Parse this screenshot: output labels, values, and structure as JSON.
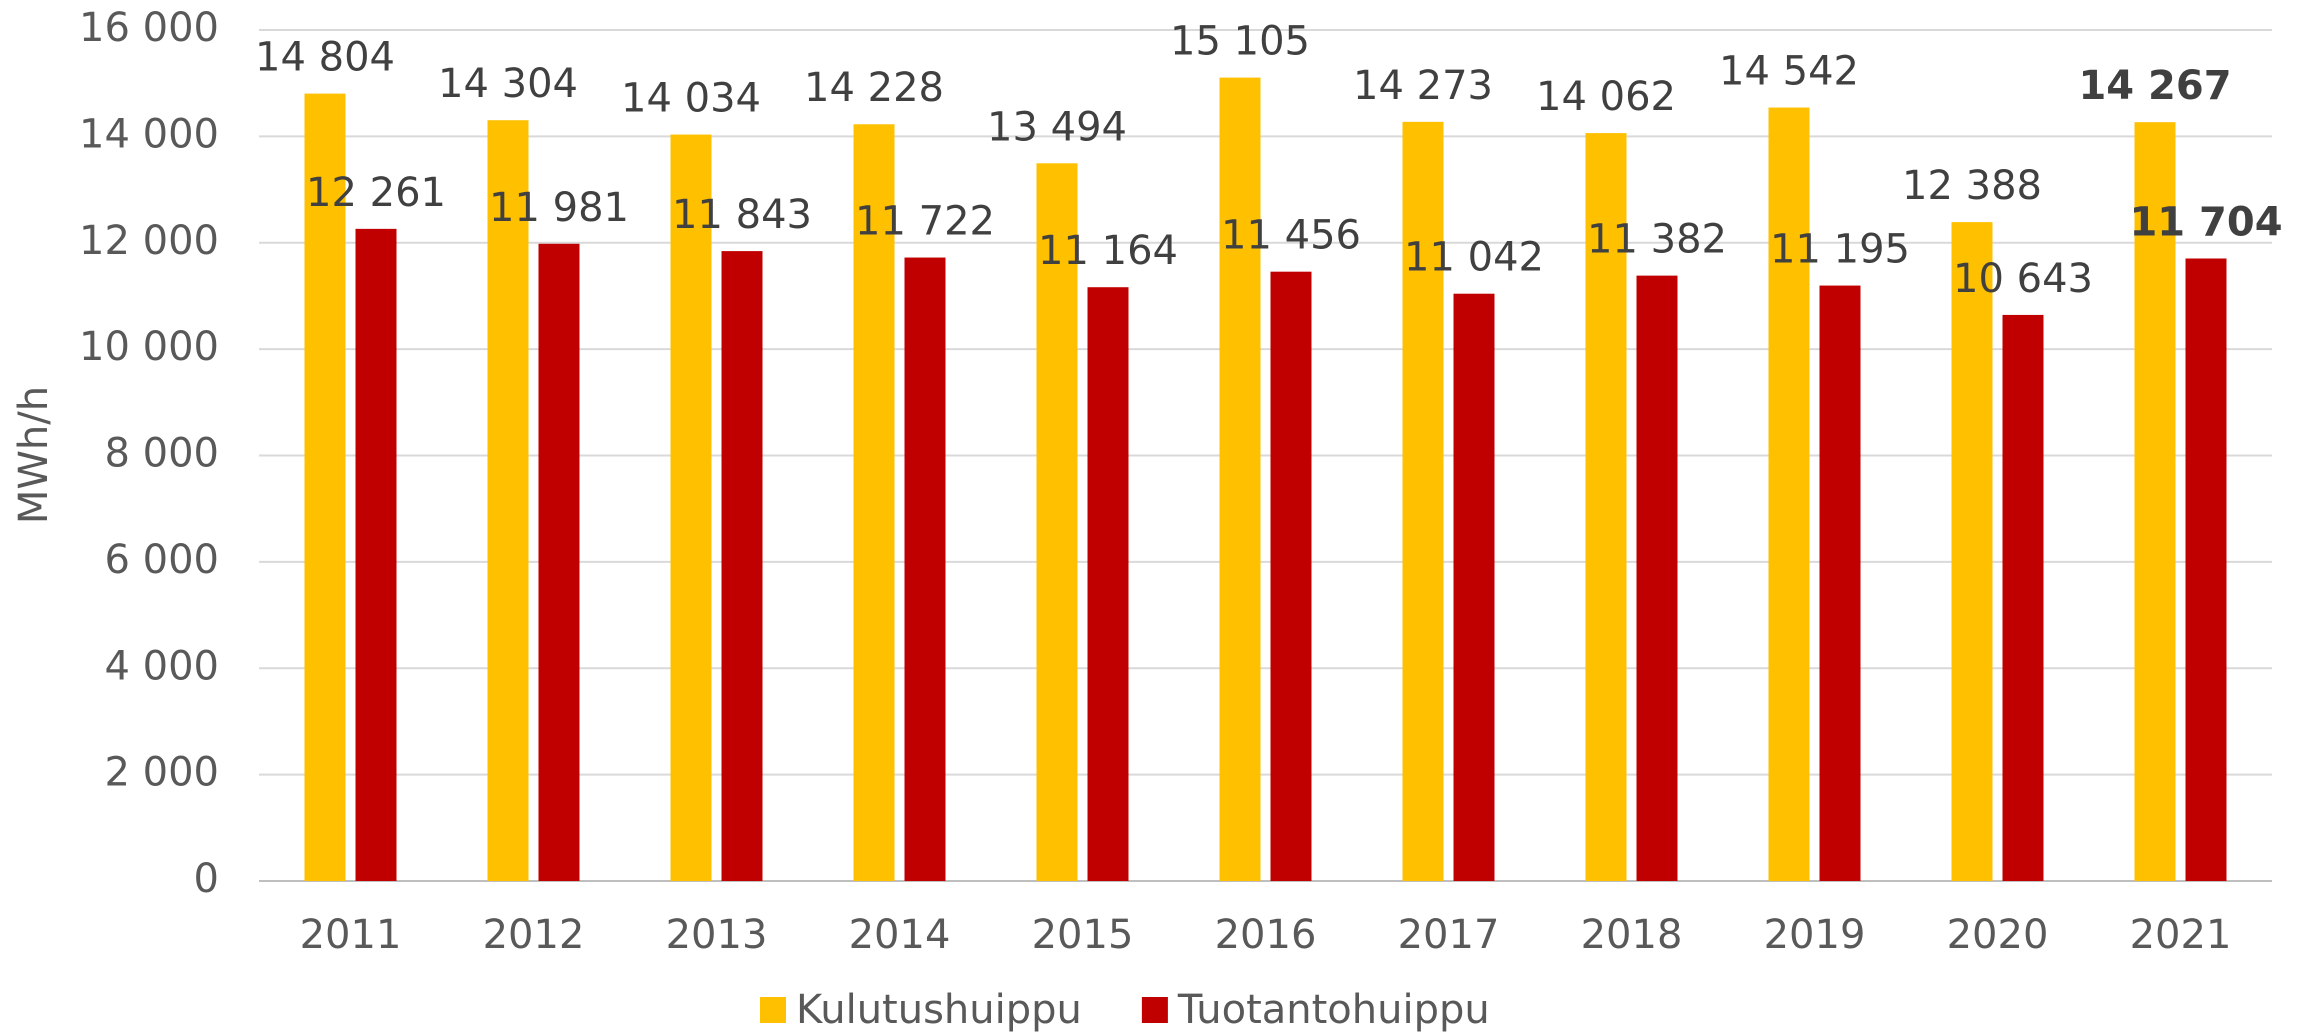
{
  "chart_data": {
    "type": "bar",
    "categories": [
      "2011",
      "2012",
      "2013",
      "2014",
      "2015",
      "2016",
      "2017",
      "2018",
      "2019",
      "2020",
      "2021"
    ],
    "series": [
      {
        "name": "Kulutushuippu",
        "color": "#FFC000",
        "values": [
          14804,
          14304,
          14034,
          14228,
          13494,
          15105,
          14273,
          14062,
          14542,
          12388,
          14267
        ],
        "value_labels": [
          "14 804",
          "14 304",
          "14 034",
          "14 228",
          "13 494",
          "15 105",
          "14 273",
          "14 062",
          "14 542",
          "12 388",
          "14 267"
        ]
      },
      {
        "name": "Tuotantohuippu",
        "color": "#C00000",
        "values": [
          12261,
          11981,
          11843,
          11722,
          11164,
          11456,
          11042,
          11382,
          11195,
          10643,
          11704
        ],
        "value_labels": [
          "12 261",
          "11 981",
          "11 843",
          "11 722",
          "11 164",
          "11 456",
          "11 042",
          "11 382",
          "11 195",
          "10 643",
          "11 704"
        ]
      }
    ],
    "y_label": "MWh/h",
    "ylim": [
      0,
      16000
    ],
    "yticks": [
      0,
      {
        "value": 2000,
        "label": "2 000"
      },
      {
        "value": 4000,
        "label": "4 000"
      },
      {
        "value": 6000,
        "label": "6 000"
      },
      {
        "value": 8000,
        "label": "8 000"
      },
      {
        "value": 10000,
        "label": "10 000"
      },
      {
        "value": 12000,
        "label": "12 000"
      },
      {
        "value": 14000,
        "label": "14 000"
      },
      {
        "value": 16000,
        "label": "16 000"
      }
    ],
    "grid": true,
    "legend": "bottom",
    "bold_last": true
  }
}
